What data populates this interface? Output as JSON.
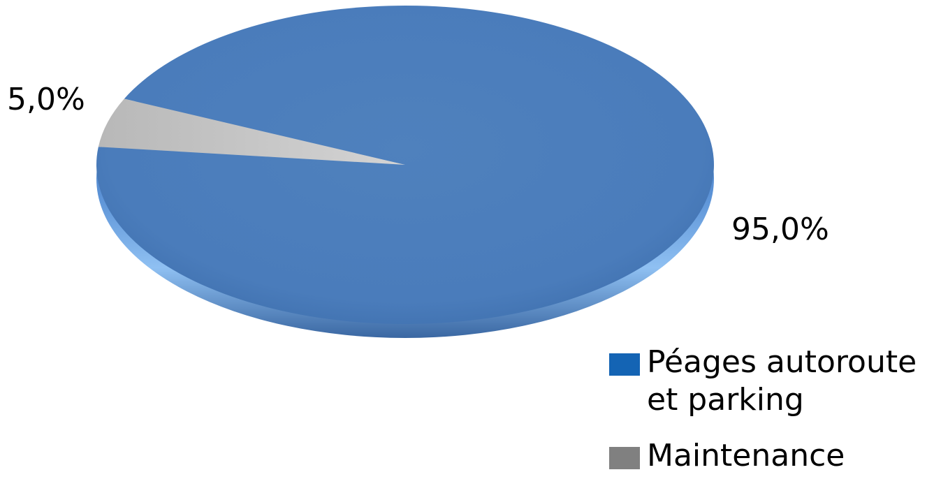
{
  "chart_data": {
    "type": "pie",
    "title": "",
    "categories": [
      "Péages autoroute\net parking",
      "Maintenance"
    ],
    "values": [
      95.0,
      5.0
    ],
    "data_labels": [
      "95,0%",
      "5,0%"
    ],
    "colors": [
      "#4F81BD",
      "#BFBFBF"
    ],
    "legend_colors": [
      "#1464B4",
      "#808080"
    ],
    "legend": "bottom-right",
    "style": "3d"
  }
}
